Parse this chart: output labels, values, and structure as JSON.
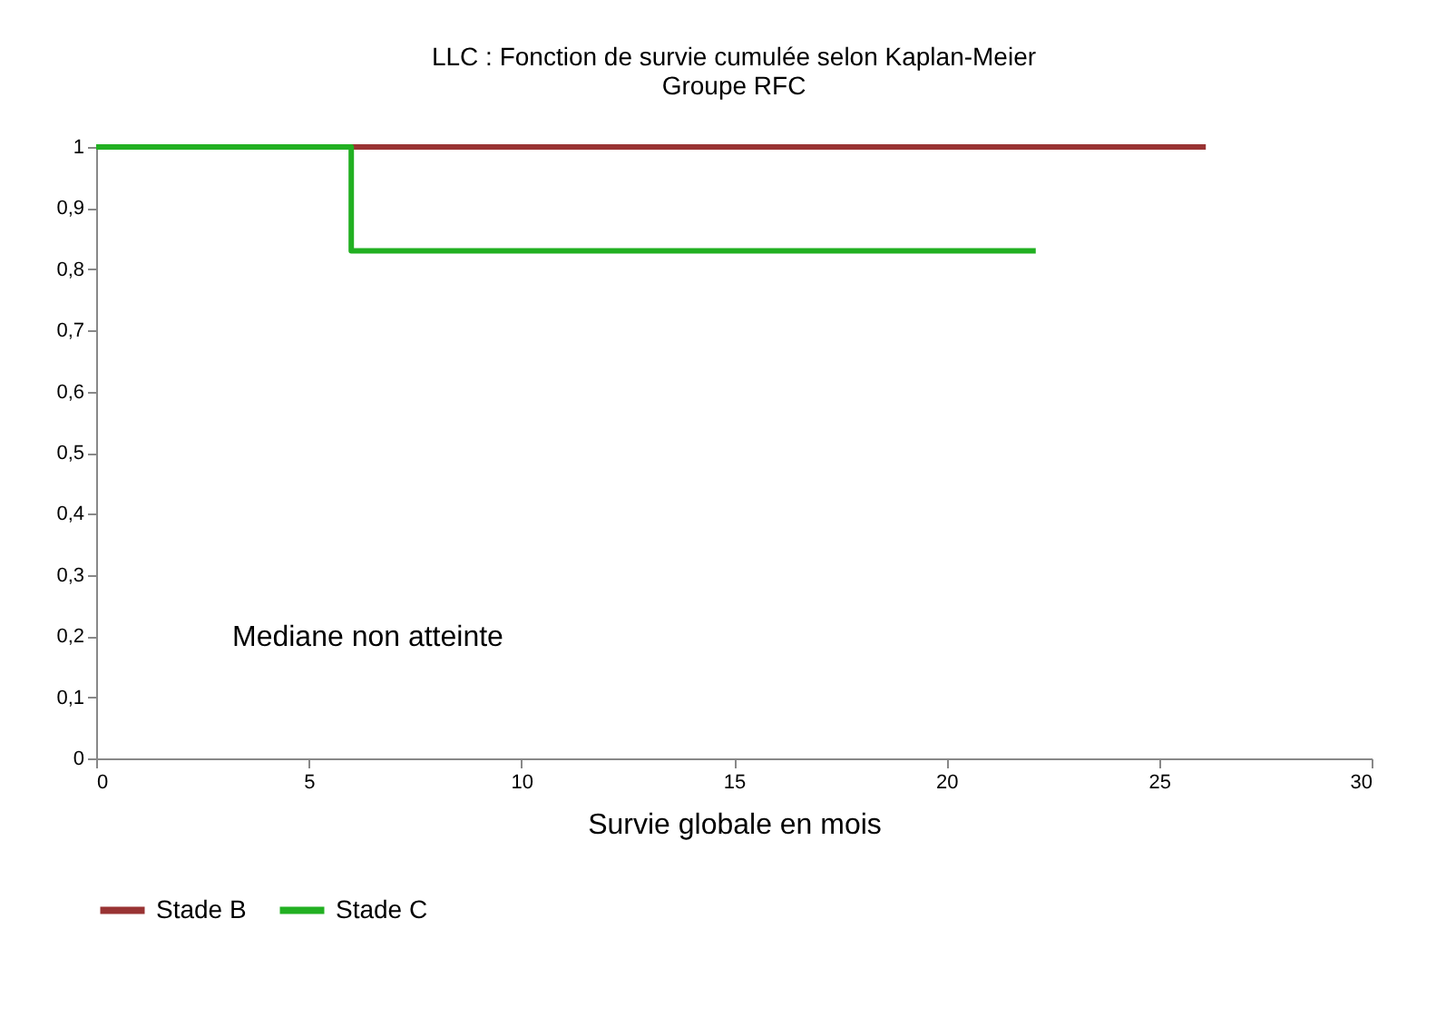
{
  "chart_data": {
    "type": "step",
    "title": [
      "LLC : Fonction de survie cumulée selon Kaplan-Meier",
      "Groupe RFC"
    ],
    "xlabel": "Survie globale en mois",
    "series": [
      {
        "name": "Stade B",
        "color": "#993333",
        "x": [
          0,
          26.1
        ],
        "values": [
          1,
          1
        ]
      },
      {
        "name": "Stade C",
        "color": "#22b022",
        "x": [
          0,
          6,
          22.1
        ],
        "values": [
          1,
          0.83,
          0.83
        ]
      }
    ],
    "xlim": [
      0,
      30
    ],
    "xticks": [
      0,
      5,
      10,
      15,
      20,
      25,
      30
    ],
    "ylim": [
      0,
      1
    ],
    "yticks": [
      0,
      {
        "value": 0.1,
        "label": "0,1"
      },
      {
        "value": 0.2,
        "label": "0,2"
      },
      {
        "value": 0.3,
        "label": "0,3"
      },
      {
        "value": 0.4,
        "label": "0,4"
      },
      {
        "value": 0.5,
        "label": "0,5"
      },
      {
        "value": 0.6,
        "label": "0,6"
      },
      {
        "value": 0.7,
        "label": "0,7"
      },
      {
        "value": 0.8,
        "label": "0,8"
      },
      {
        "value": 0.9,
        "label": "0,9"
      },
      1
    ],
    "annotations": [
      "Mediane  non atteinte"
    ],
    "grid": false,
    "legend": "bottom",
    "marker": "none",
    "line_style": "solid"
  }
}
